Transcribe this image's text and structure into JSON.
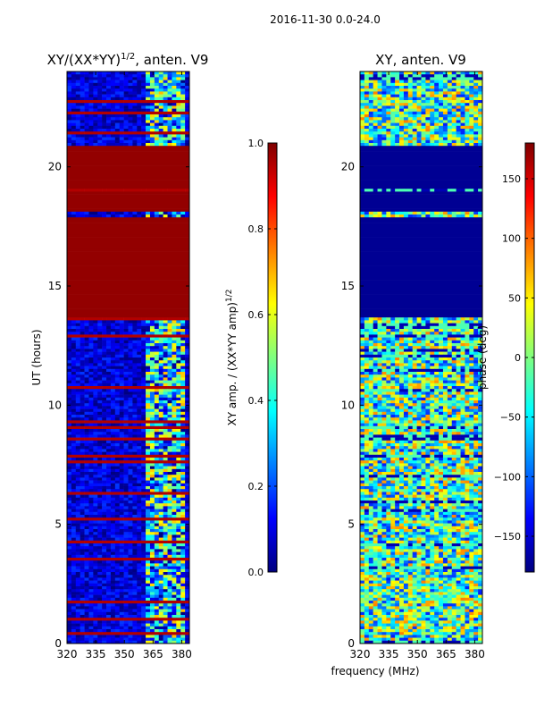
{
  "figure": {
    "suptitle": "2016-11-30 0.0-24.0",
    "shared_xlabel": "frequency (MHz)"
  },
  "colors": {
    "jet_stops": [
      "#00007f",
      "#0000ff",
      "#007fff",
      "#00ffff",
      "#7fff7f",
      "#ffff00",
      "#ff7f00",
      "#ff0000",
      "#7f0000"
    ],
    "axis": "#000000",
    "background": "#ffffff"
  },
  "chart_data": [
    {
      "type": "heatmap",
      "panel": "left",
      "title_main": "XY/(XX*YY)",
      "title_sup": "1/2",
      "title_tail": ", anten. V9",
      "xlabel": "",
      "ylabel": "UT (hours)",
      "xlim": [
        320,
        384
      ],
      "ylim": [
        0,
        24
      ],
      "xticks": [
        320,
        335,
        350,
        365,
        380
      ],
      "yticks": [
        0,
        5,
        10,
        15,
        20
      ],
      "colorbar": {
        "label_main": "XY amp. / (XX*YY amp)",
        "label_sup": "1/2",
        "min": 0.0,
        "max": 1.0,
        "ticks": [
          0.0,
          0.2,
          0.4,
          0.6,
          0.8,
          1.0
        ],
        "tick_labels": [
          "0.0",
          "0.2",
          "0.4",
          "0.6",
          "0.8",
          "1.0"
        ]
      },
      "description_bands": [
        {
          "from": 0.0,
          "to": 2.5,
          "level": "low-blue"
        },
        {
          "from": 2.5,
          "to": 4.3,
          "level": "mixed"
        },
        {
          "from": 4.3,
          "to": 13.8,
          "level": "blue-with-red-stripes"
        },
        {
          "from": 13.8,
          "to": 18.0,
          "level": "saturated"
        },
        {
          "from": 18.0,
          "to": 19.0,
          "level": "saturated"
        },
        {
          "from": 19.0,
          "to": 21.0,
          "level": "saturated"
        },
        {
          "from": 21.0,
          "to": 24.0,
          "level": "blue-with-red-stripes"
        }
      ]
    },
    {
      "type": "heatmap",
      "panel": "right",
      "title": "XY, anten. V9",
      "xlabel": "frequency (MHz)",
      "ylabel": "",
      "xlim": [
        320,
        384
      ],
      "ylim": [
        0,
        24
      ],
      "xticks": [
        320,
        335,
        350,
        365,
        380
      ],
      "yticks": [
        0,
        5,
        10,
        15,
        20
      ],
      "colorbar": {
        "label": "phase (deg)",
        "min": -180,
        "max": 180,
        "ticks": [
          -150,
          -100,
          -50,
          0,
          50,
          100,
          150
        ],
        "tick_labels": [
          "−150",
          "−100",
          "−50",
          "0",
          "50",
          "100",
          "150"
        ]
      }
    }
  ]
}
